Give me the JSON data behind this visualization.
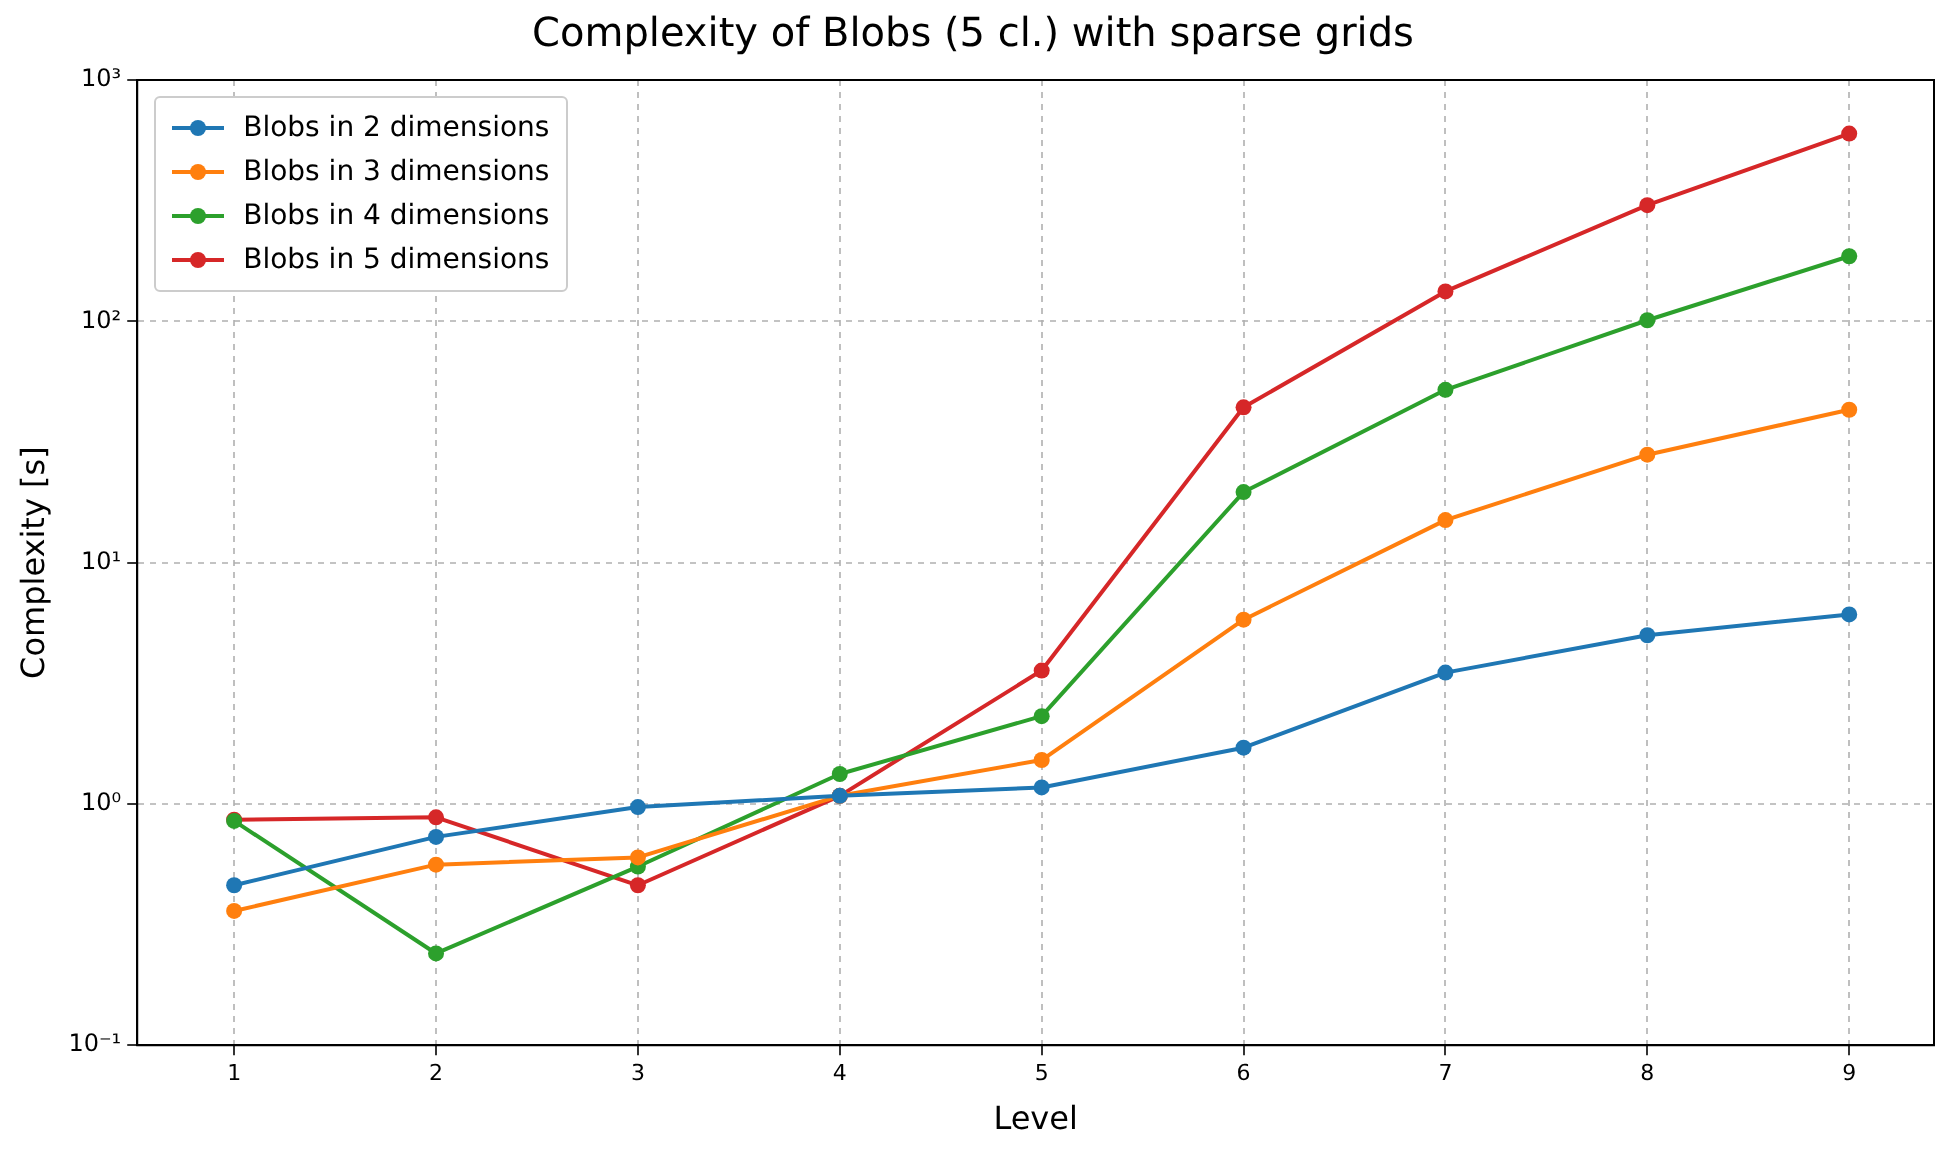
{
  "chart_data": {
    "type": "line",
    "title": "Complexity of Blobs (5 cl.) with sparse grids",
    "xlabel": "Level",
    "ylabel": "Complexity [s]",
    "x": [
      1,
      2,
      3,
      4,
      5,
      6,
      7,
      8,
      9
    ],
    "series": [
      {
        "name": "Blobs in 2 dimensions",
        "color": "#1f77b4",
        "values": [
          0.46,
          0.73,
          0.97,
          1.08,
          1.17,
          1.71,
          3.5,
          5.0,
          6.1
        ]
      },
      {
        "name": "Blobs in 3 dimensions",
        "color": "#ff7f0e",
        "values": [
          0.36,
          0.56,
          0.6,
          1.08,
          1.52,
          5.8,
          15,
          28,
          43
        ]
      },
      {
        "name": "Blobs in 4 dimensions",
        "color": "#2ca02c",
        "values": [
          0.85,
          0.24,
          0.55,
          1.33,
          2.31,
          19.6,
          52,
          101,
          186
        ]
      },
      {
        "name": "Blobs in 5 dimensions",
        "color": "#d62728",
        "values": [
          0.86,
          0.88,
          0.46,
          1.08,
          3.57,
          44,
          133,
          303,
          600
        ]
      }
    ],
    "xlim": [
      0.52,
      9.42
    ],
    "xticks": [
      1,
      2,
      3,
      4,
      5,
      6,
      7,
      8,
      9
    ],
    "ylim": [
      0.1,
      1000
    ],
    "yticks": [
      {
        "value": 0.1,
        "label": "10⁻¹"
      },
      {
        "value": 1,
        "label": "10⁰"
      },
      {
        "value": 10,
        "label": "10¹"
      },
      {
        "value": 100,
        "label": "10²"
      },
      {
        "value": 1000,
        "label": "10³"
      }
    ],
    "log": "y",
    "grid": true,
    "legend": "top left",
    "marker": "circle",
    "line_style": "solid"
  }
}
